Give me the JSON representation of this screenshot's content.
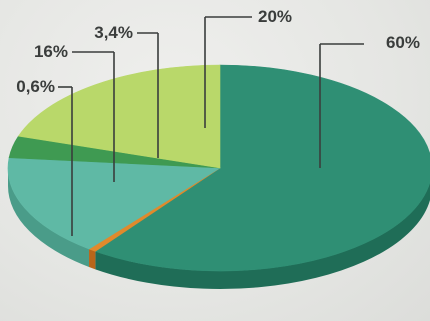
{
  "chart_data": {
    "type": "pie",
    "style": "3d",
    "title": "",
    "legend": "none",
    "slices": [
      {
        "label": "60%",
        "value": 60,
        "color": "#2f8f74",
        "side_color": "#1f6d57"
      },
      {
        "label": "0,6%",
        "value": 0.6,
        "color": "#e08a2c",
        "side_color": "#b9661a"
      },
      {
        "label": "16%",
        "value": 16,
        "color": "#5fb9a5",
        "side_color": "#4a9c89"
      },
      {
        "label": "3,4%",
        "value": 3.4,
        "color": "#3f9a52",
        "side_color": "#2e7a3f"
      },
      {
        "label": "20%",
        "value": 20,
        "color": "#b9d86a",
        "side_color": "#94b44c"
      }
    ]
  }
}
